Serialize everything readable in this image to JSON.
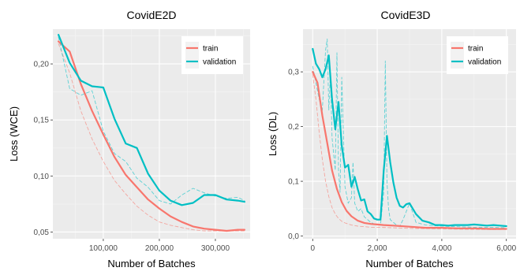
{
  "chart_data": [
    {
      "type": "line",
      "title": "CovidE2D",
      "xlabel": "Number of Batches",
      "ylabel": "Loss (WCE)",
      "xlim": [
        10000,
        362000
      ],
      "ylim": [
        0.044,
        0.231
      ],
      "x_ticks": [
        100000,
        200000,
        300000
      ],
      "x_tick_labels": [
        "100,000",
        "200,000",
        "300,000"
      ],
      "y_ticks": [
        0.05,
        0.1,
        0.15,
        0.2
      ],
      "y_tick_labels": [
        "0,05",
        "0,10",
        "0,15",
        "0,20"
      ],
      "grid": true,
      "legend": {
        "position": "top-right",
        "entries": [
          "train",
          "validation"
        ]
      },
      "series": [
        {
          "name": "train",
          "color": "#F8766D",
          "style": "solid",
          "x": [
            20000,
            40000,
            60000,
            80000,
            100000,
            120000,
            140000,
            160000,
            180000,
            200000,
            220000,
            240000,
            260000,
            280000,
            300000,
            320000,
            340000,
            352000
          ],
          "y": [
            0.22,
            0.211,
            0.182,
            0.158,
            0.137,
            0.117,
            0.101,
            0.09,
            0.079,
            0.071,
            0.064,
            0.059,
            0.055,
            0.053,
            0.052,
            0.051,
            0.052,
            0.052
          ]
        },
        {
          "name": "validation",
          "color": "#00BFC4",
          "style": "solid",
          "x": [
            20000,
            40000,
            60000,
            80000,
            100000,
            120000,
            140000,
            160000,
            180000,
            200000,
            220000,
            240000,
            260000,
            280000,
            300000,
            320000,
            340000,
            352000
          ],
          "y": [
            0.226,
            0.201,
            0.185,
            0.18,
            0.179,
            0.151,
            0.129,
            0.125,
            0.102,
            0.087,
            0.078,
            0.074,
            0.076,
            0.083,
            0.083,
            0.079,
            0.078,
            0.077
          ]
        },
        {
          "color": "#F8766D",
          "style": "dashed",
          "x": [
            20000,
            40000,
            60000,
            80000,
            100000,
            120000,
            140000,
            160000,
            180000,
            200000,
            220000,
            240000,
            260000,
            280000,
            300000,
            320000,
            340000,
            352000
          ],
          "y": [
            0.218,
            0.192,
            0.158,
            0.133,
            0.113,
            0.096,
            0.084,
            0.073,
            0.065,
            0.059,
            0.056,
            0.054,
            0.052,
            0.051,
            0.051,
            0.051,
            0.051,
            0.051
          ]
        },
        {
          "color": "#00BFC4",
          "style": "dashed",
          "x": [
            20000,
            40000,
            60000,
            80000,
            100000,
            120000,
            140000,
            160000,
            180000,
            200000,
            220000,
            240000,
            260000,
            280000,
            300000,
            320000,
            340000,
            352000
          ],
          "y": [
            0.224,
            0.178,
            0.172,
            0.176,
            0.14,
            0.12,
            0.113,
            0.098,
            0.09,
            0.078,
            0.075,
            0.083,
            0.089,
            0.085,
            0.082,
            0.08,
            0.081,
            0.078
          ]
        }
      ]
    },
    {
      "type": "line",
      "title": "CovidE3D",
      "xlabel": "Number of Batches",
      "ylabel": "Loss (DL)",
      "xlim": [
        -300,
        6300
      ],
      "ylim": [
        -0.005,
        0.378
      ],
      "x_ticks": [
        0,
        2000,
        4000,
        6000
      ],
      "x_tick_labels": [
        "0",
        "2,000",
        "4,000",
        "6,000"
      ],
      "y_ticks": [
        0.0,
        0.1,
        0.2,
        0.3
      ],
      "y_tick_labels": [
        "0,0",
        "0,1",
        "0,2",
        "0,3"
      ],
      "grid": true,
      "legend": {
        "position": "top-right",
        "entries": [
          "train",
          "validation"
        ]
      },
      "series": [
        {
          "name": "train",
          "color": "#F8766D",
          "style": "solid",
          "x": [
            0,
            150,
            300,
            450,
            600,
            750,
            900,
            1050,
            1200,
            1400,
            1600,
            1800,
            2000,
            2200,
            2500,
            3000,
            3500,
            4000,
            4500,
            5000,
            5500,
            6000
          ],
          "y": [
            0.3,
            0.28,
            0.22,
            0.17,
            0.12,
            0.086,
            0.062,
            0.046,
            0.036,
            0.028,
            0.024,
            0.022,
            0.021,
            0.02,
            0.019,
            0.017,
            0.015,
            0.015,
            0.014,
            0.014,
            0.013,
            0.013
          ]
        },
        {
          "name": "validation",
          "color": "#00BFC4",
          "style": "solid",
          "x": [
            0,
            100,
            200,
            300,
            400,
            500,
            600,
            700,
            800,
            900,
            1000,
            1100,
            1200,
            1300,
            1400,
            1500,
            1600,
            1700,
            1800,
            1900,
            2000,
            2100,
            2200,
            2300,
            2400,
            2500,
            2600,
            2700,
            2800,
            2900,
            3000,
            3200,
            3400,
            3600,
            3800,
            4000,
            4200,
            4400,
            4600,
            4800,
            5000,
            5200,
            5400,
            5600,
            5800,
            6000
          ],
          "y": [
            0.342,
            0.315,
            0.305,
            0.29,
            0.305,
            0.33,
            0.25,
            0.195,
            0.245,
            0.165,
            0.125,
            0.13,
            0.09,
            0.108,
            0.085,
            0.065,
            0.067,
            0.045,
            0.04,
            0.032,
            0.03,
            0.03,
            0.12,
            0.183,
            0.135,
            0.098,
            0.07,
            0.055,
            0.052,
            0.058,
            0.06,
            0.04,
            0.028,
            0.025,
            0.02,
            0.02,
            0.019,
            0.02,
            0.02,
            0.02,
            0.021,
            0.02,
            0.019,
            0.02,
            0.019,
            0.018
          ]
        },
        {
          "color": "#F8766D",
          "style": "dashed",
          "x": [
            0,
            100,
            200,
            300,
            400,
            500,
            600,
            700,
            800,
            900,
            1000,
            1200,
            1400,
            1600,
            1800,
            2000,
            2500,
            3000,
            4000,
            5000,
            6000
          ],
          "y": [
            0.295,
            0.25,
            0.19,
            0.14,
            0.1,
            0.072,
            0.052,
            0.04,
            0.032,
            0.027,
            0.024,
            0.02,
            0.018,
            0.017,
            0.016,
            0.016,
            0.015,
            0.014,
            0.013,
            0.012,
            0.012
          ]
        },
        {
          "color": "#00BFC4",
          "style": "dashed",
          "x": [
            0,
            100,
            200,
            300,
            400,
            450,
            500,
            550,
            600,
            700,
            750,
            800,
            850,
            900,
            1000,
            1100,
            1200,
            1250,
            1300,
            1400,
            1500,
            1600,
            1700,
            1800,
            1900,
            2000,
            2100,
            2200,
            2250,
            2300,
            2350,
            2400,
            2500,
            2600,
            2700,
            2800,
            3000,
            3200,
            3500,
            4000,
            4500,
            5000,
            5500,
            6000
          ],
          "y": [
            0.31,
            0.28,
            0.25,
            0.23,
            0.34,
            0.36,
            0.23,
            0.3,
            0.18,
            0.12,
            0.335,
            0.12,
            0.08,
            0.29,
            0.09,
            0.06,
            0.07,
            0.135,
            0.06,
            0.045,
            0.05,
            0.035,
            0.03,
            0.025,
            0.022,
            0.02,
            0.02,
            0.08,
            0.32,
            0.1,
            0.05,
            0.03,
            0.025,
            0.02,
            0.018,
            0.03,
            0.06,
            0.025,
            0.02,
            0.018,
            0.017,
            0.016,
            0.016,
            0.015
          ]
        }
      ]
    }
  ]
}
